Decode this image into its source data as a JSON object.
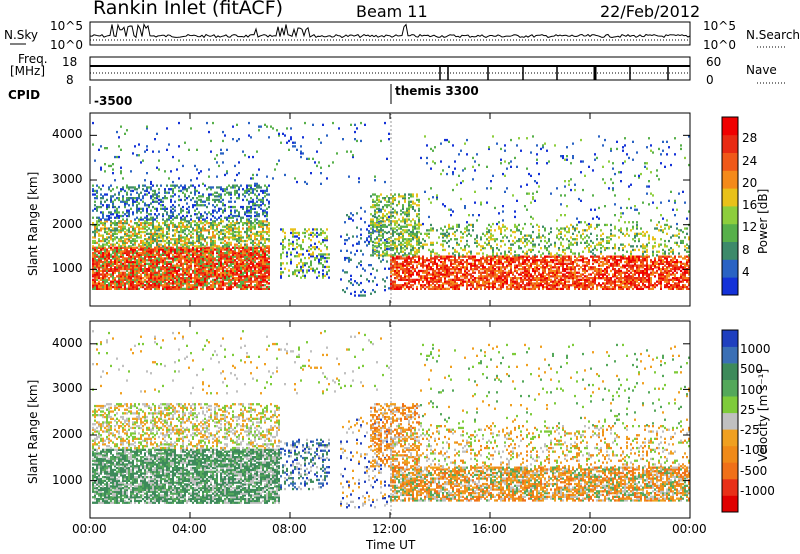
{
  "header": {
    "radar": "Rankin Inlet (fitACF)",
    "beam": "Beam 11",
    "date": "22/Feb/2012"
  },
  "top_panels": {
    "nsky_label": "N.Sky",
    "nsearch_label": "N.Search",
    "noise_ticks_left": [
      "10^5",
      "10^0"
    ],
    "noise_ticks_right": [
      "10^5",
      "10^0"
    ],
    "freq_label_1": "Freq.",
    "freq_label_2": "[MHz]",
    "freq_ticks": [
      "18",
      "8"
    ],
    "nave_label": "Nave",
    "nave_ticks": [
      "60",
      "0"
    ],
    "cpid_label": "CPID",
    "cpid_values": [
      "-3500",
      "themis 3300"
    ]
  },
  "chart_data": [
    {
      "type": "heatmap",
      "panel": "power",
      "ylabel": "Slant Range [km]",
      "ylim": [
        180,
        4500
      ],
      "yticks": [
        "1000",
        "2000",
        "3000",
        "4000"
      ],
      "xticks": [
        "00:00",
        "04:00",
        "08:00",
        "12:00",
        "16:00",
        "20:00",
        "00:00"
      ],
      "colorbar_label": "Power [dB]",
      "colorbar_ticks": [
        "4",
        "8",
        "12",
        "16",
        "20",
        "24",
        "28"
      ],
      "colorbar_colors": [
        "#1432d8",
        "#2a63c4",
        "#3d8a6a",
        "#57b04a",
        "#8dce3c",
        "#e8c11a",
        "#f48a1a",
        "#f05818",
        "#e82a12",
        "#f00000"
      ]
    },
    {
      "type": "heatmap",
      "panel": "velocity",
      "ylabel": "Slant Range [km]",
      "ylim": [
        180,
        4500
      ],
      "yticks": [
        "1000",
        "2000",
        "3000",
        "4000"
      ],
      "xticks": [
        "00:00",
        "04:00",
        "08:00",
        "12:00",
        "16:00",
        "20:00",
        "00:00"
      ],
      "xlabel": "Time UT",
      "colorbar_label": "Velocity [m s⁻¹]",
      "colorbar_ticks": [
        "1000",
        "500",
        "100",
        "25",
        "-25",
        "-100",
        "-500",
        "-1000"
      ],
      "colorbar_colors": [
        "#1f3fbf",
        "#3a6fb5",
        "#3d8a5a",
        "#54a85a",
        "#7ecb3a",
        "#c0c0c0",
        "#f0a020",
        "#f08a18",
        "#f07018",
        "#e83018",
        "#e00000"
      ]
    }
  ]
}
